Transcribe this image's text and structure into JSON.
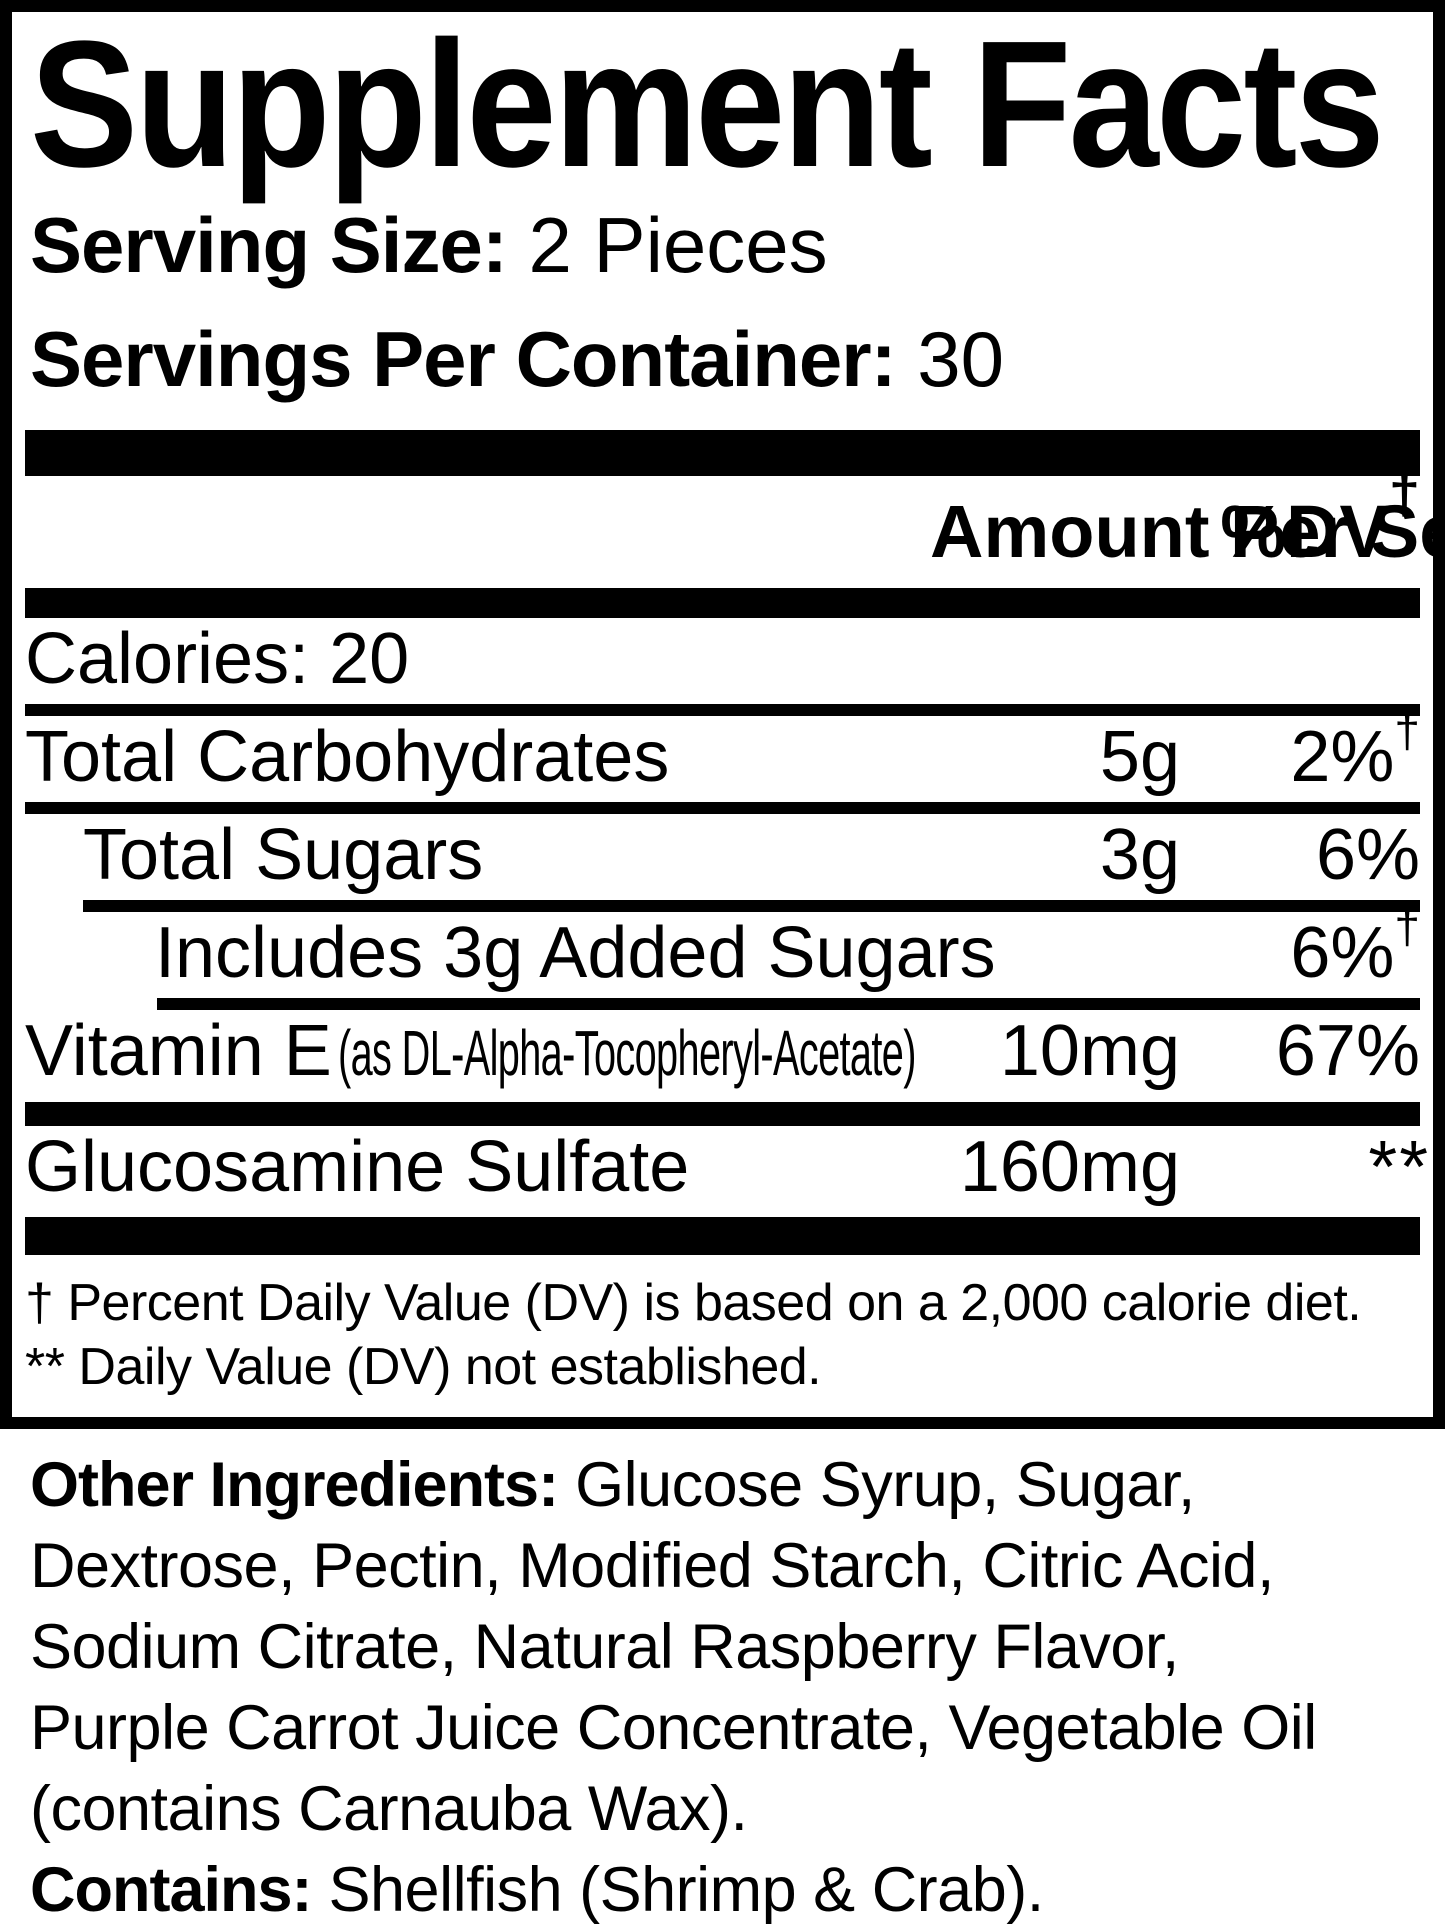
{
  "label": {
    "title": "Supplement Facts",
    "serving_size": {
      "label": "Serving Size:",
      "value": "2 Pieces"
    },
    "servings_per_container": {
      "label": "Servings Per Container:",
      "value": "30"
    },
    "header": {
      "amount": "Amount Per Serving",
      "dv": "%DV",
      "dv_sup": "†"
    },
    "rows": [
      {
        "name": "Calories: 20"
      },
      {
        "name": "Total Carbohydrates",
        "amount": "5g",
        "dv": "2%",
        "dv_sup": "†"
      },
      {
        "name": "Total Sugars",
        "amount": "3g",
        "dv": "6%"
      },
      {
        "name": "Includes 3g Added Sugars",
        "dv": "6%",
        "dv_sup": "†"
      },
      {
        "name": "Vitamin E",
        "name_note": "(as DL-Alpha-Tocopheryl-Acetate)",
        "amount": "10mg",
        "dv": "67%"
      },
      {
        "name": "Glucosamine Sulfate",
        "amount": "160mg",
        "dv": "**"
      }
    ],
    "footnotes": [
      "† Percent Daily Value (DV) is based on a 2,000 calorie diet.",
      "** Daily Value (DV) not established."
    ],
    "other_ingredients": {
      "label": "Other Ingredients:",
      "lines": [
        "Glucose Syrup, Sugar,",
        "Dextrose, Pectin, Modified Starch, Citric Acid,",
        "Sodium Citrate, Natural Raspberry Flavor,",
        "Purple Carrot Juice Concentrate, Vegetable Oil",
        "(contains Carnauba Wax)."
      ]
    },
    "contains": {
      "label": "Contains:",
      "text": "Shellfish (Shrimp & Crab)."
    },
    "colors": {
      "ink": "#000000",
      "paper": "#ffffff"
    }
  }
}
